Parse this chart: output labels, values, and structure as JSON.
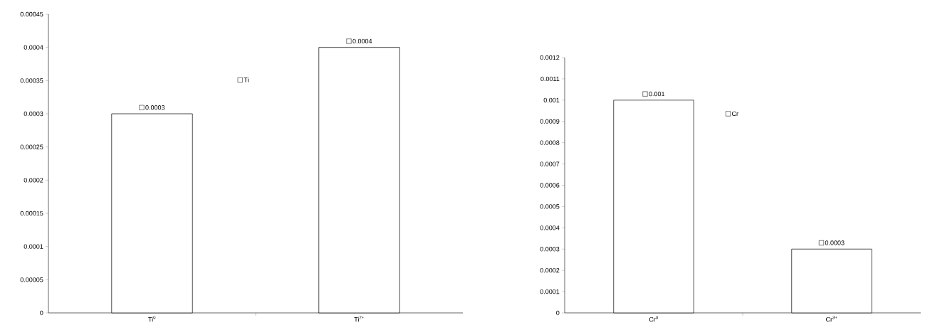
{
  "chart_data": [
    {
      "type": "bar",
      "categories": [
        "Ti$^{0}$",
        "Ti$^{2+}$"
      ],
      "series": [
        {
          "name": "Ti",
          "color": "#ffffff",
          "values": [
            0.0003,
            0.0004
          ]
        }
      ],
      "ylim": [
        0,
        0.00045
      ],
      "yticks": [
        0,
        {
          "value": 5e-05,
          "label": "0.00005"
        },
        0.0001,
        0.00015,
        0.0002,
        0.00025,
        0.0003,
        0.00035,
        0.0004,
        0.00045
      ],
      "data_labels": true,
      "legend": "top",
      "grid": false
    },
    {
      "type": "bar",
      "categories": [
        "Cr$^{0}$",
        "Cr$^{3+}$"
      ],
      "series": [
        {
          "name": "Cr",
          "color": "#ffffff",
          "values": [
            0.001,
            0.0003
          ]
        }
      ],
      "ylim": [
        0,
        0.0012
      ],
      "yticks": [
        0,
        0.0001,
        0.0002,
        0.0003,
        0.0004,
        0.0005,
        0.0006,
        0.0007,
        0.0008,
        0.0009,
        0.001,
        0.0011,
        0.0012
      ],
      "data_labels": true,
      "legend": "top",
      "grid": false
    }
  ]
}
